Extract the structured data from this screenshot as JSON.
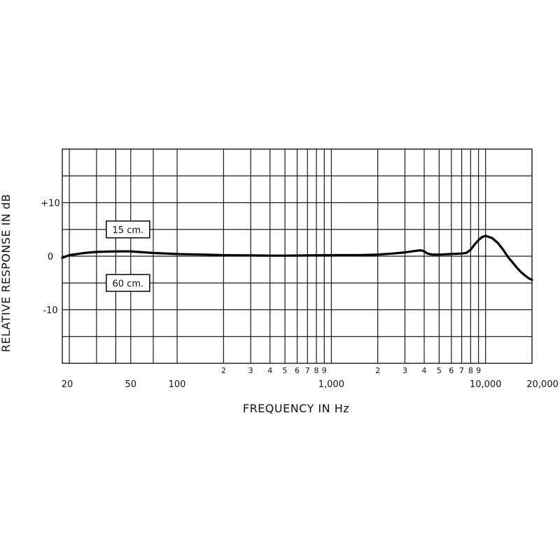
{
  "chart_data": {
    "type": "line",
    "title": "",
    "xlabel": "FREQUENCY IN Hz",
    "ylabel": "RELATIVE RESPONSE IN dB",
    "x_scale": "log",
    "xlim": [
      18,
      20000
    ],
    "ylim": [
      -20,
      20
    ],
    "grid": true,
    "x_major_ticks": [
      {
        "value": 20,
        "label": "20"
      },
      {
        "value": 50,
        "label": "50"
      },
      {
        "value": 100,
        "label": "100"
      },
      {
        "value": 1000,
        "label": "1,000"
      },
      {
        "value": 10000,
        "label": "10,000"
      },
      {
        "value": 20000,
        "label": "20,000"
      }
    ],
    "x_minor_ticks": [
      {
        "value": 200,
        "label": "2"
      },
      {
        "value": 300,
        "label": "3"
      },
      {
        "value": 400,
        "label": "4"
      },
      {
        "value": 500,
        "label": "5"
      },
      {
        "value": 600,
        "label": "6"
      },
      {
        "value": 700,
        "label": "7"
      },
      {
        "value": 800,
        "label": "8"
      },
      {
        "value": 900,
        "label": "9"
      },
      {
        "value": 2000,
        "label": "2"
      },
      {
        "value": 3000,
        "label": "3"
      },
      {
        "value": 4000,
        "label": "4"
      },
      {
        "value": 5000,
        "label": "5"
      },
      {
        "value": 6000,
        "label": "6"
      },
      {
        "value": 7000,
        "label": "7"
      },
      {
        "value": 8000,
        "label": "8"
      },
      {
        "value": 9000,
        "label": "9"
      }
    ],
    "x_extra_gridlines": [
      30,
      40,
      70
    ],
    "y_ticks": [
      {
        "value": 10,
        "label": "+10"
      },
      {
        "value": 0,
        "label": "0"
      },
      {
        "value": -10,
        "label": "-10"
      }
    ],
    "y_gridlines": [
      15,
      10,
      5,
      0,
      -5,
      -10,
      -15
    ],
    "series": [
      {
        "x": [
          18,
          20,
          25,
          30,
          40,
          50,
          70,
          100,
          150,
          200,
          300,
          400,
          500,
          700,
          1000,
          1500,
          2000,
          2500,
          3000,
          3500,
          3800,
          4000,
          4200,
          4500,
          5000,
          6000,
          7000,
          7500,
          8000,
          8500,
          9000,
          9500,
          10000,
          11000,
          12000,
          13000,
          14000,
          15000,
          16000,
          17000,
          18000,
          19000,
          20000
        ],
        "y": [
          -0.3,
          0.2,
          0.6,
          0.8,
          0.9,
          0.9,
          0.6,
          0.4,
          0.3,
          0.2,
          0.15,
          0.1,
          0.1,
          0.15,
          0.2,
          0.2,
          0.3,
          0.5,
          0.7,
          1.0,
          1.1,
          0.9,
          0.5,
          0.3,
          0.3,
          0.4,
          0.5,
          0.6,
          1.2,
          2.2,
          3.0,
          3.6,
          3.8,
          3.4,
          2.5,
          1.2,
          -0.2,
          -1.2,
          -2.2,
          -3.0,
          -3.6,
          -4.1,
          -4.4
        ]
      }
    ],
    "annotations": [
      {
        "text": "15 cm.",
        "x": 48,
        "y": 5
      },
      {
        "text": "60 cm.",
        "x": 48,
        "y": -5
      }
    ]
  }
}
